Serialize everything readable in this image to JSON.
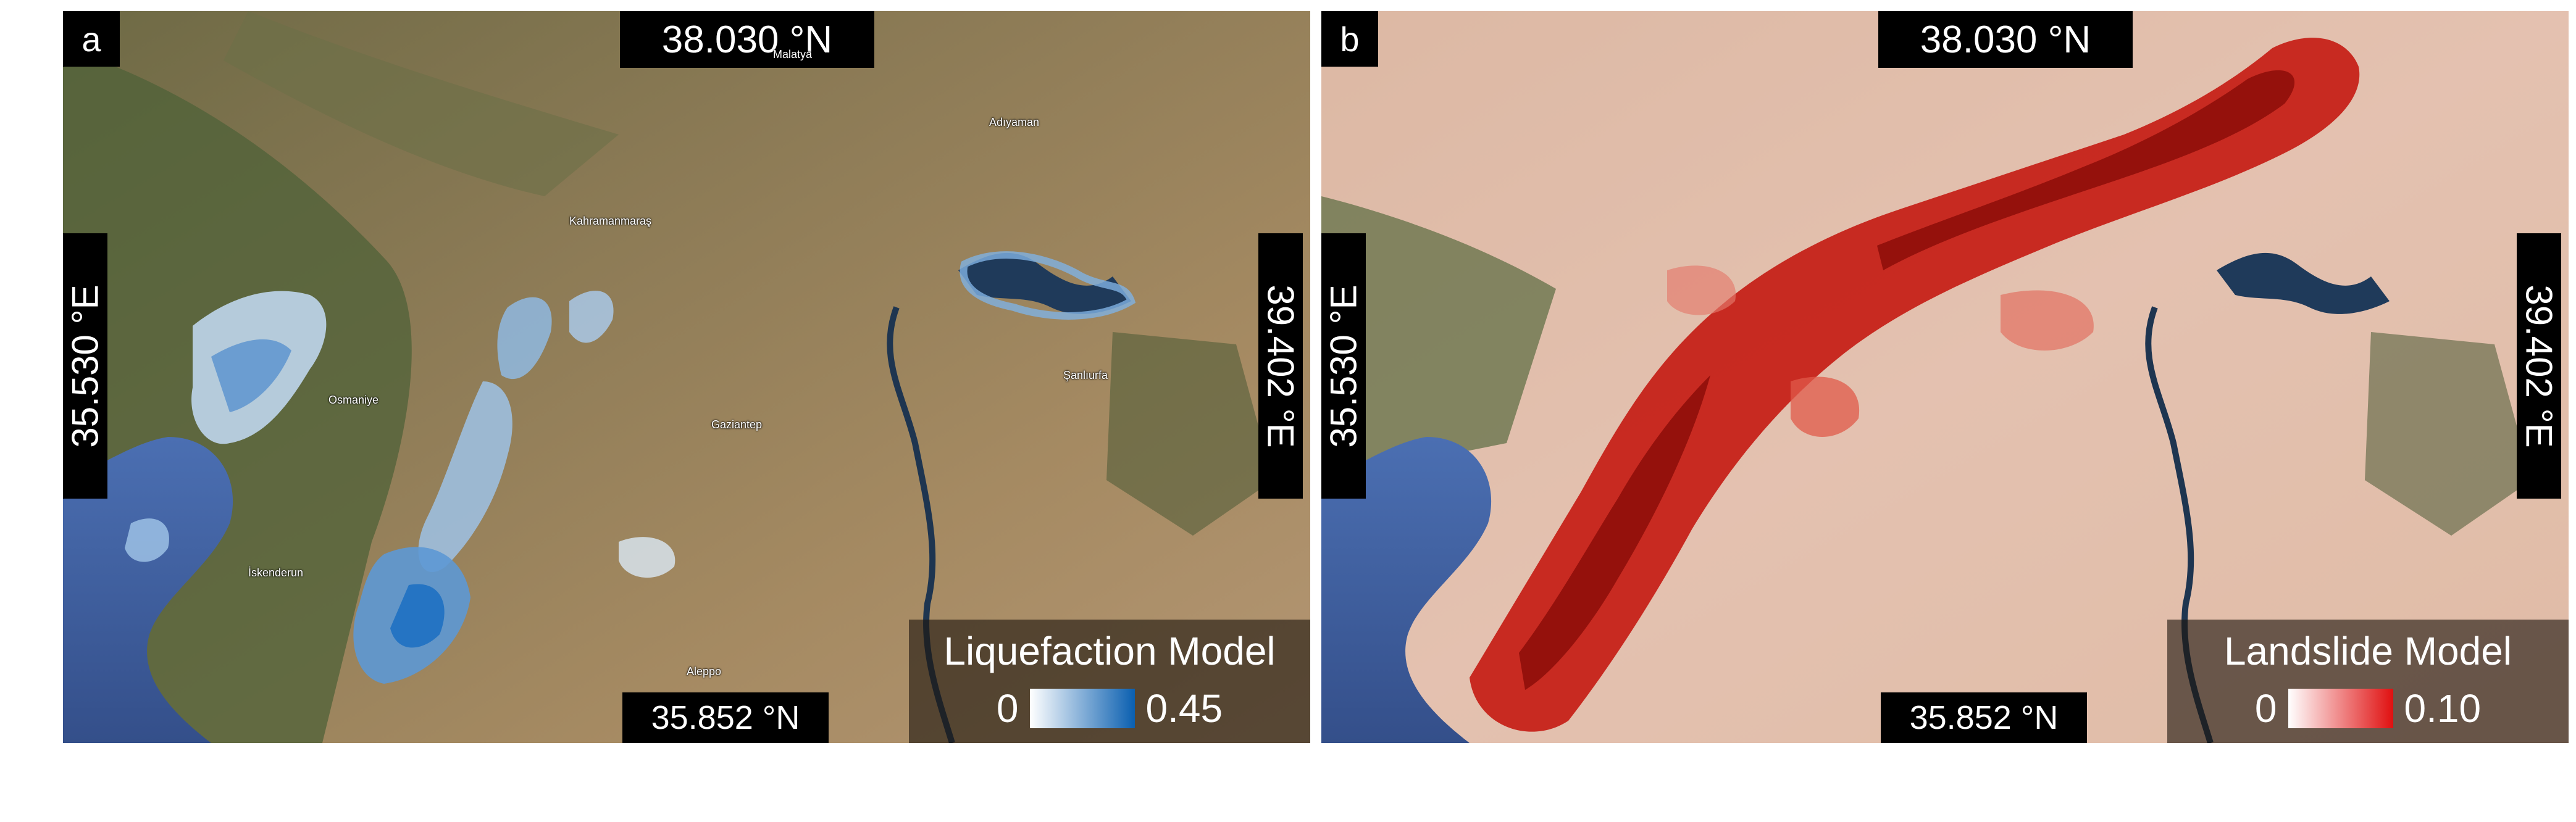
{
  "panel_a": {
    "letter": "a",
    "lat_top": "38.030 °N",
    "lat_bottom": "35.852 °N",
    "lon_left": "35.530 °E",
    "lon_right": "39.402 °E",
    "legend": {
      "title": "Liquefaction Model",
      "min": "0",
      "max": "0.45"
    },
    "colors": {
      "ramp_low": "#ffffff",
      "ramp_high": "#0a5fb0"
    }
  },
  "panel_b": {
    "letter": "b",
    "lat_top": "38.030 °N",
    "lat_bottom": "35.852 °N",
    "lon_left": "35.530 °E",
    "lon_right": "39.402 °E",
    "legend": {
      "title": "Landslide Model",
      "min": "0",
      "max": "0.10"
    },
    "colors": {
      "ramp_low": "#ffffff",
      "ramp_high": "#e01010"
    }
  },
  "basemap": {
    "place_labels": [
      "Malatya",
      "Adıyaman",
      "Kahramanmaraş",
      "Osmaniye",
      "Gaziantep",
      "Şanlıurfa",
      "İskenderun",
      "Aleppo"
    ]
  }
}
